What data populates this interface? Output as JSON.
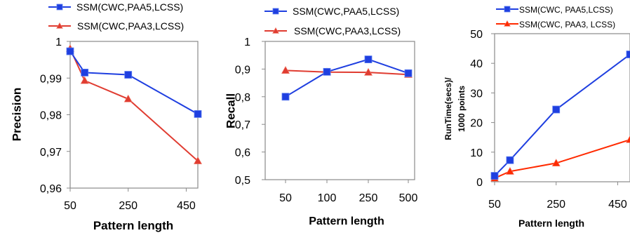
{
  "chart_data": [
    {
      "type": "line",
      "ylabel": "Precision",
      "xlabel": "Pattern length",
      "x_axis": "numeric",
      "xlim": [
        50,
        490
      ],
      "xticks": [
        50,
        250,
        450
      ],
      "ylim": [
        0.96,
        1.0
      ],
      "yticks": [
        0.96,
        0.97,
        0.98,
        0.99,
        1.0
      ],
      "ytick_labels": [
        "0,96",
        "0,97",
        "0,98",
        "0,99",
        "1"
      ],
      "grid": false,
      "legend": "top",
      "series": [
        {
          "name": "SSM(CWC,PAA5,LCSS)",
          "color": "#1f3fe0",
          "marker": "square",
          "x": [
            50,
            100,
            250,
            490
          ],
          "y": [
            0.9973,
            0.9915,
            0.9909,
            0.9802
          ]
        },
        {
          "name": "SSM(CWC,PAA3,LCSS)",
          "color": "#e03c31",
          "marker": "triangle",
          "x": [
            50,
            100,
            250,
            490
          ],
          "y": [
            0.998,
            0.9893,
            0.9843,
            0.9674
          ]
        }
      ]
    },
    {
      "type": "line",
      "ylabel": "Recall",
      "xlabel": "Pattern length",
      "x_axis": "category",
      "categories": [
        "50",
        "100",
        "250",
        "500"
      ],
      "ylim": [
        0.5,
        1.0
      ],
      "yticks": [
        0.5,
        0.6,
        0.7,
        0.8,
        0.9,
        1.0
      ],
      "ytick_labels": [
        "0,5",
        "0,6",
        "0,7",
        "0,8",
        "0,9",
        "1"
      ],
      "grid": false,
      "legend": "top",
      "series": [
        {
          "name": "SSM(CWC,PAA5,LCSS)",
          "color": "#1f3fe0",
          "marker": "square",
          "values": [
            0.8,
            0.89,
            0.935,
            0.885
          ]
        },
        {
          "name": "SSM(CWC,PAA3,LCSS)",
          "color": "#e03c31",
          "marker": "triangle",
          "values": [
            0.895,
            0.889,
            0.888,
            0.88
          ]
        }
      ]
    },
    {
      "type": "line",
      "ylabel": "RunTime(secs)/ 1000  points",
      "ylabel_lines": [
        "RunTime(secs)/",
        "1000  points"
      ],
      "xlabel": "Pattern length",
      "x_axis": "numeric",
      "xlim": [
        50,
        490
      ],
      "xticks": [
        50,
        250,
        450
      ],
      "ylim": [
        0,
        50
      ],
      "yticks": [
        0,
        10,
        20,
        30,
        40,
        50
      ],
      "ytick_labels": [
        "0",
        "10",
        "20",
        "30",
        "40",
        "50"
      ],
      "grid": false,
      "legend": "top",
      "series": [
        {
          "name": "SSM(CWC, PAA5,LCSS)",
          "color": "#1f3fe0",
          "marker": "square",
          "x": [
            50,
            100,
            250,
            490
          ],
          "y": [
            2,
            7.3,
            24.4,
            43
          ]
        },
        {
          "name": "SSM(CWC, PAA3, LCSS)",
          "color": "#ff2a00",
          "marker": "triangle",
          "x": [
            50,
            100,
            250,
            490
          ],
          "y": [
            1.2,
            3.5,
            6.3,
            14.2
          ]
        }
      ]
    }
  ]
}
